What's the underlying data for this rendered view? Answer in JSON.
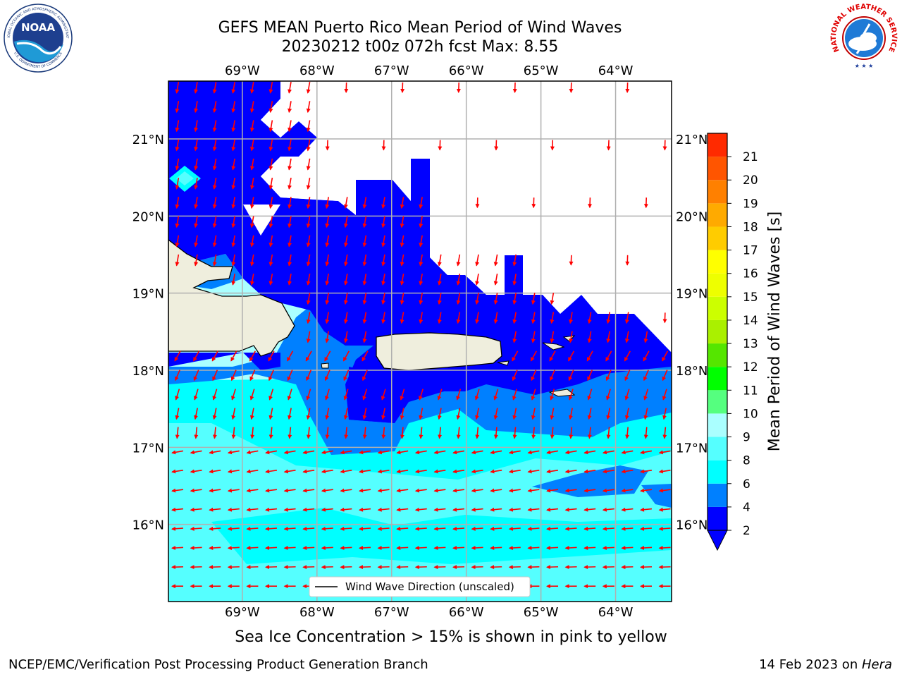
{
  "title": {
    "line1": "GEFS MEAN Puerto Rico Mean Period of Wind Waves",
    "line2": "20230212 t00z 072h fcst   Max: 8.55"
  },
  "logos": {
    "left": {
      "name": "NOAA",
      "ring_text": "NATIONAL OCEANIC AND ATMOSPHERIC ADMINISTRATION",
      "ring_text_bottom": "U.S. DEPARTMENT OF COMMERCE"
    },
    "right": {
      "name": "NATIONAL WEATHER SERVICE"
    }
  },
  "map": {
    "lon_labels": [
      "69°W",
      "68°W",
      "67°W",
      "66°W",
      "65°W",
      "64°W"
    ],
    "lat_labels": [
      "21°N",
      "20°N",
      "19°N",
      "18°N",
      "17°N",
      "16°N"
    ],
    "lon_range": [
      -69.99,
      -63.25
    ],
    "lat_range": [
      15.0,
      21.75
    ],
    "legend_label": "Wind Wave Direction (unscaled)",
    "colors": {
      "land": "#efeedd",
      "arrow": "#ff0000",
      "level_2_4": "#0000ff",
      "level_4_6": "#0080ff",
      "level_6_8": "#00ffff",
      "level_8_9": "#55ffff",
      "level_9_10": "#aaffff"
    }
  },
  "colorbar": {
    "label": "Mean Period of Wind Waves [s]",
    "ticks": [
      "2",
      "4",
      "6",
      "8",
      "9",
      "10",
      "11",
      "12",
      "13",
      "14",
      "15",
      "16",
      "17",
      "18",
      "19",
      "20",
      "21"
    ],
    "colors": [
      "#0000ff",
      "#0080ff",
      "#00ffff",
      "#55ffff",
      "#aaffff",
      "#55ff7f",
      "#00ff00",
      "#55e600",
      "#aaf000",
      "#ccff00",
      "#eeff00",
      "#ffff00",
      "#ffcc00",
      "#ffaa00",
      "#ff8000",
      "#ff5500",
      "#ff2a00",
      "#ff0000"
    ]
  },
  "notes": {
    "sea_ice": "Sea Ice Concentration > 15% is shown in pink to yellow"
  },
  "footer": {
    "left": "NCEP/EMC/Verification Post Processing Product Generation Branch",
    "right_date": "14 Feb 2023 on ",
    "right_host": "Hera"
  }
}
